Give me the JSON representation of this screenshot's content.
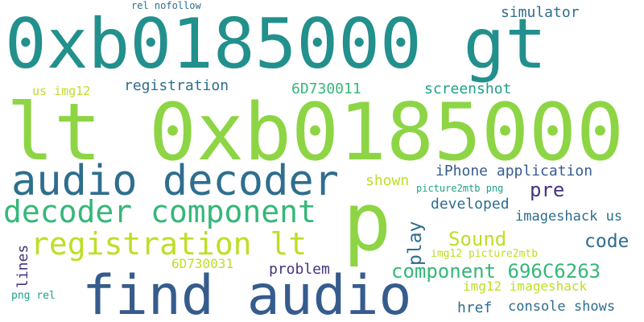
{
  "colors": {
    "teal": "#22908c",
    "lime": "#8dd544",
    "navy": "#365c8d",
    "green": "#35b779",
    "yellow": "#bddf26",
    "purple": "#46337e",
    "blue": "#2e6e8e",
    "cyan": "#1fa187"
  },
  "words": [
    {
      "text": "0xb0185000 gt",
      "color": "#22908c"
    },
    {
      "text": "lt 0xb0185000",
      "color": "#8dd544"
    },
    {
      "text": "audio decoder",
      "color": "#2e6e8e"
    },
    {
      "text": "decoder component",
      "color": "#35b779"
    },
    {
      "text": "registration lt",
      "color": "#bddf26"
    },
    {
      "text": "find audio",
      "color": "#365c8d"
    },
    {
      "text": "p",
      "color": "#8dd544"
    },
    {
      "text": "rel nofollow",
      "color": "#2e6e8e"
    },
    {
      "text": "simulator",
      "color": "#2e6e8e"
    },
    {
      "text": "us img12",
      "color": "#bddf26"
    },
    {
      "text": "registration",
      "color": "#2e6e8e"
    },
    {
      "text": "6D730011",
      "color": "#35b779"
    },
    {
      "text": "screenshot",
      "color": "#1fa187"
    },
    {
      "text": "shown",
      "color": "#bddf26"
    },
    {
      "text": "iPhone application",
      "color": "#365c8d"
    },
    {
      "text": "picture2mtb png",
      "color": "#1fa187"
    },
    {
      "text": "pre",
      "color": "#46337e"
    },
    {
      "text": "developed",
      "color": "#2e6e8e"
    },
    {
      "text": "imageshack us",
      "color": "#2e6e8e"
    },
    {
      "text": "play",
      "color": "#2e6e8e"
    },
    {
      "text": "Sound",
      "color": "#bddf26"
    },
    {
      "text": "code",
      "color": "#2e6e8e"
    },
    {
      "text": "img12 picture2mtb",
      "color": "#bddf26"
    },
    {
      "text": "lines",
      "color": "#46337e"
    },
    {
      "text": "6D730031",
      "color": "#bddf26"
    },
    {
      "text": "problem",
      "color": "#46337e"
    },
    {
      "text": "component 696C6263",
      "color": "#35b779"
    },
    {
      "text": "img12 imageshack",
      "color": "#bddf26"
    },
    {
      "text": "png rel",
      "color": "#1fa187"
    },
    {
      "text": "href",
      "color": "#2e6e8e"
    },
    {
      "text": "console shows",
      "color": "#2e6e8e"
    }
  ]
}
